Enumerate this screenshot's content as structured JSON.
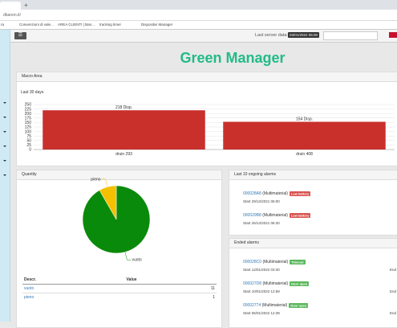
{
  "browser": {
    "address": "dbanon.it/",
    "bookmarks": [
      "ra",
      "Convenzioni di vale...",
      "AREA CLIENTI | Ban...",
      "tracking timer",
      "Dispositivi Manager"
    ]
  },
  "header": {
    "server_label": "Last server data:",
    "server_date": "03/01/2022 06:00"
  },
  "title": "Green Manager",
  "panels": {
    "macro": "Macro Area",
    "quantity": "Quantity",
    "ongoing": "Last 10 ongoing alarms",
    "ended": "Ended alarms"
  },
  "table": {
    "headers": [
      "Descr.",
      "Value"
    ]
  },
  "ongoing_alarms": [
    {
      "id": "000028A8",
      "type": "(Multimaterial)",
      "status": "Low battery",
      "start": "Start 29/12/2021 06:00"
    },
    {
      "id": "000029B8",
      "type": "(Multimaterial)",
      "status": "Low battery",
      "start": "Start 26/12/2021 06:30"
    }
  ],
  "ended_alarms": [
    {
      "id": "000028C0",
      "type": "(Multimaterial)",
      "status": "Timeout",
      "start": "Start 12/01/2022 03:30",
      "end": "End"
    },
    {
      "id": "000027D8",
      "type": "(Multimaterial)",
      "status": "Door open",
      "start": "Start 10/01/2022 12:59",
      "end": "End"
    },
    {
      "id": "00002774",
      "type": "(Multimaterial)",
      "status": "Door open",
      "start": "Start 06/01/2022 12:39",
      "end": "End"
    }
  ],
  "chart_data": [
    {
      "type": "bar",
      "title": "Last 30 days",
      "categories": [
        "druin 293",
        "druin 408"
      ],
      "values": [
        218,
        154
      ],
      "value_labels": [
        "218 Disp.",
        "154 Disp."
      ],
      "color": "#c9302c",
      "ylim": [
        0,
        250
      ],
      "yticks": [
        0,
        25,
        50,
        75,
        100,
        125,
        150,
        175,
        200,
        225,
        250
      ],
      "grid": true
    },
    {
      "type": "pie",
      "categories": [
        "vuoto",
        "pieno"
      ],
      "values": [
        11,
        1
      ],
      "colors": [
        "#0a8a0a",
        "#f5c000"
      ]
    }
  ]
}
